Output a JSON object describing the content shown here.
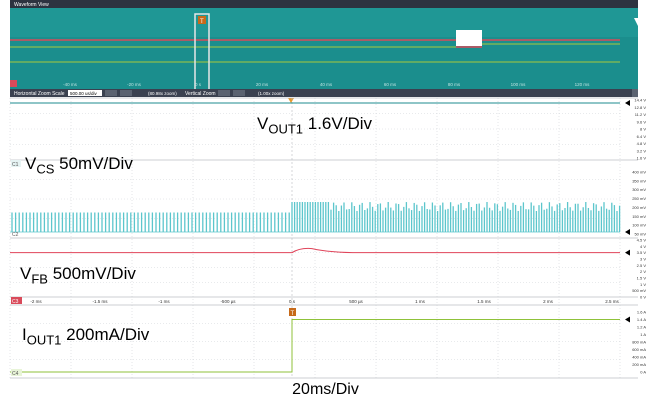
{
  "window": {
    "title": "Waveform View"
  },
  "toolbar": {
    "horizontal_zoom_label": "Horizontal Zoom Scale",
    "horizontal_zoom_value": "500.00 us/div",
    "vertical_zoom_label": "Vertical Zoom",
    "zoom_center": "(80.98x zoom)",
    "vertical_zoom_value": "(1.00x zoom)"
  },
  "channels": {
    "c1": "C1",
    "c2": "C2",
    "c3": "C3",
    "c4": "C4",
    "trigger_marker": "T"
  },
  "chart_data": {
    "type": "line",
    "title": "",
    "time_axis": {
      "label": "20ms/Div",
      "zoom_ticks": [
        "-2 ms",
        "-1.5 ms",
        "-1 ms",
        "-500 µs",
        "0 s",
        "500 µs",
        "1 ms",
        "1.5 ms",
        "2 ms",
        "2.5 ms"
      ],
      "overview_ticks": [
        "-40 ms",
        "-20 ms",
        "0 s",
        "20 ms",
        "40 ms",
        "60 ms",
        "80 ms",
        "100 ms",
        "120 ms"
      ]
    },
    "traces": [
      {
        "name_main": "V",
        "name_sub": "OUT1",
        "scale": "1.6V/Div",
        "color": "#1c8b8f",
        "right_ticks": [
          "14.4 V",
          "12.8 V",
          "11.2 V",
          "9.6 V",
          "8 V",
          "6.4 V",
          "4.8 V",
          "3.2 V",
          "1.6 V"
        ],
        "level": 16
      },
      {
        "name_main": "V",
        "name_sub": "CS",
        "scale": "50mV/Div",
        "color": "#5cc6cc",
        "right_ticks": [
          "400 mV",
          "350 mV",
          "300 mV",
          "250 mV",
          "200 mV",
          "150 mV",
          "100 mV",
          "50 mV"
        ],
        "peak_before": 130,
        "peak_after": 200
      },
      {
        "name_main": "V",
        "name_sub": "FB",
        "scale": "500mV/Div",
        "color": "#e0445a",
        "right_ticks": [
          "4.5 V",
          "4 V",
          "3.5 V",
          "3 V",
          "2.5 V",
          "2 V",
          "1.5 V",
          "1 V",
          "500 mV",
          "0 V"
        ],
        "before": 3.5,
        "after": 3.5,
        "bump": 3.9
      },
      {
        "name_main": "I",
        "name_sub": "OUT1",
        "scale": "200mA/Div",
        "color": "#8fc23a",
        "right_ticks": [
          "1.6 A",
          "1.4 A",
          "1.2 A",
          "1 A",
          "800 mA",
          "600 mA",
          "400 mA",
          "200 mA",
          "0 A"
        ],
        "before": 0,
        "after": 1.4
      }
    ]
  }
}
